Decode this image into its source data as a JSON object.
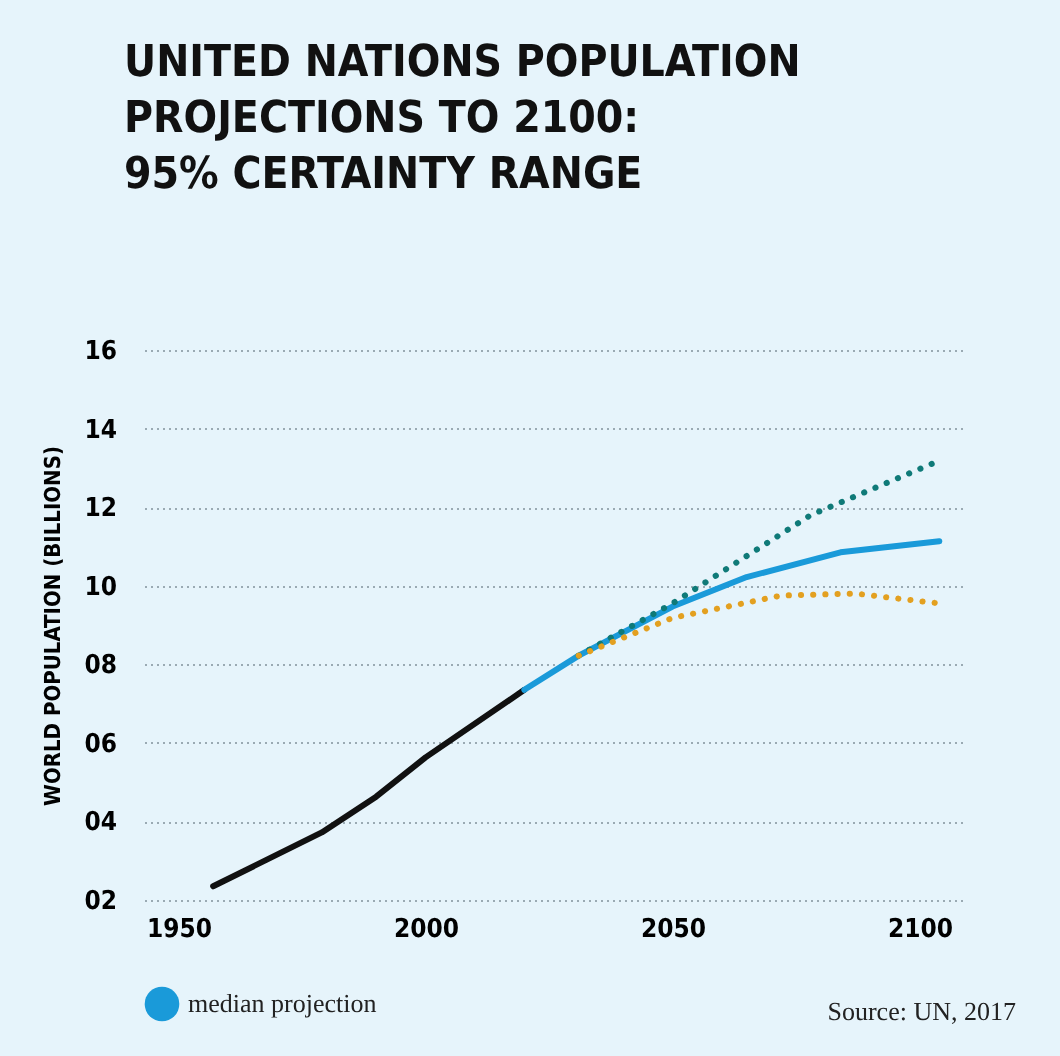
{
  "chart_data": {
    "type": "line",
    "title": "UNITED NATIONS POPULATION\nPROJECTIONS TO 2100:\n95% CERTAINTY RANGE",
    "ylabel": "WORLD POPULATION (BILLIONS)",
    "annotations": [
      "Source: UN, 2017"
    ],
    "xlim": [
      1943,
      2109
    ],
    "xticks": [
      1950,
      2000,
      2050,
      2100
    ],
    "ylim": [
      2,
      16
    ],
    "yticks": [
      {
        "value": 2,
        "label": "02"
      },
      {
        "value": 4,
        "label": "04"
      },
      {
        "value": 6,
        "label": "06"
      },
      {
        "value": 8,
        "label": "08"
      },
      10,
      12,
      14,
      16
    ],
    "grid": "y",
    "legend": "bottom left",
    "series": [
      {
        "color": "#111111",
        "line_style": "solid",
        "x": [
          1957,
          1979,
          1990,
          2000,
          2020
        ],
        "values": [
          2.35,
          3.72,
          4.63,
          5.63,
          7.35
        ]
      },
      {
        "name": "median projection",
        "color": "#1a9ad9",
        "line_style": "solid",
        "x": [
          2020,
          2031,
          2050,
          2065,
          2084,
          2104
        ],
        "values": [
          7.35,
          8.22,
          9.47,
          10.22,
          10.85,
          11.13
        ]
      },
      {
        "color": "#0f7a78",
        "line_style": "dotted",
        "x": [
          2031,
          2050,
          2078,
          2103
        ],
        "values": [
          8.22,
          9.55,
          11.8,
          13.13
        ]
      },
      {
        "color": "#e3a020",
        "line_style": "dotted",
        "x": [
          2031,
          2050,
          2072,
          2087,
          2104
        ],
        "values": [
          8.22,
          9.18,
          9.75,
          9.8,
          9.55
        ]
      }
    ]
  }
}
